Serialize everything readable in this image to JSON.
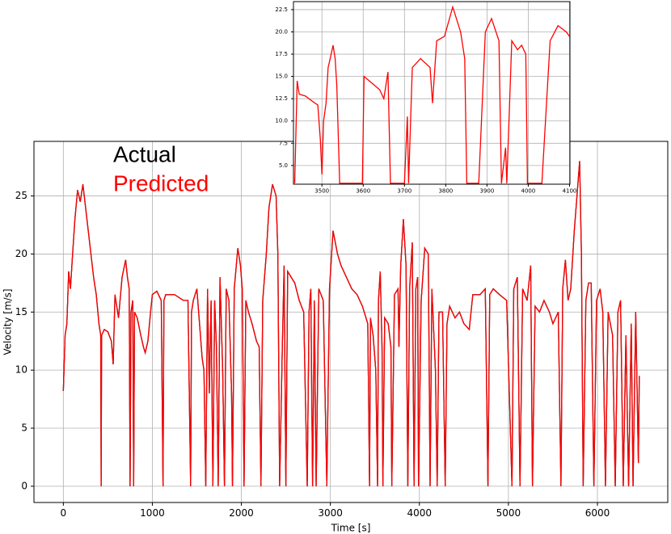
{
  "chart_data": [
    {
      "type": "line",
      "xlabel": "Time [s]",
      "ylabel": "Velocity [m/s]",
      "grid": true,
      "legend": "upper left",
      "xlim": [
        -330,
        6790
      ],
      "ylim": [
        -1.4,
        29.7
      ],
      "xticks": [
        0,
        1000,
        2000,
        3000,
        4000,
        5000,
        6000
      ],
      "yticks": [
        0,
        5,
        10,
        15,
        20,
        25
      ],
      "x": [
        0,
        20,
        40,
        60,
        80,
        100,
        130,
        160,
        190,
        220,
        250,
        280,
        310,
        340,
        370,
        400,
        420,
        425,
        430,
        460,
        500,
        540,
        560,
        580,
        620,
        660,
        700,
        720,
        740,
        750,
        760,
        780,
        790,
        800,
        830,
        870,
        900,
        920,
        950,
        980,
        1000,
        1050,
        1100,
        1120,
        1130,
        1150,
        1250,
        1350,
        1400,
        1430,
        1440,
        1460,
        1500,
        1530,
        1560,
        1580,
        1600,
        1620,
        1640,
        1660,
        1680,
        1700,
        1720,
        1740,
        1760,
        1790,
        1810,
        1830,
        1860,
        1890,
        1900,
        1920,
        1960,
        1990,
        2010,
        2030,
        2050,
        2080,
        2120,
        2170,
        2200,
        2220,
        2240,
        2280,
        2310,
        2350,
        2390,
        2410,
        2430,
        2460,
        2480,
        2500,
        2520,
        2600,
        2650,
        2700,
        2740,
        2760,
        2780,
        2800,
        2820,
        2840,
        2870,
        2920,
        2960,
        2990,
        3030,
        3080,
        3120,
        3180,
        3240,
        3300,
        3360,
        3420,
        3440,
        3450,
        3480,
        3510,
        3530,
        3540,
        3560,
        3580,
        3590,
        3610,
        3650,
        3680,
        3690,
        3720,
        3760,
        3770,
        3790,
        3820,
        3850,
        3870,
        3890,
        3920,
        3940,
        3960,
        3980,
        3990,
        4020,
        4060,
        4100,
        4120,
        4140,
        4180,
        4200,
        4220,
        4260,
        4290,
        4310,
        4340,
        4400,
        4450,
        4500,
        4560,
        4600,
        4680,
        4740,
        4770,
        4790,
        4830,
        4900,
        4980,
        5040,
        5060,
        5100,
        5130,
        5160,
        5210,
        5250,
        5270,
        5300,
        5350,
        5400,
        5460,
        5500,
        5560,
        5590,
        5610,
        5640,
        5670,
        5700,
        5740,
        5770,
        5800,
        5820,
        5840,
        5870,
        5900,
        5930,
        5960,
        5990,
        6030,
        6060,
        6090,
        6120,
        6170,
        6200,
        6230,
        6260,
        6290,
        6320,
        6350,
        6380,
        6400,
        6430,
        6460,
        6470
      ],
      "series": [
        {
          "name": "Actual",
          "color": "#000000",
          "values": [
            8.2,
            13,
            14,
            18.5,
            17,
            19.5,
            23,
            25.5,
            24.5,
            26,
            24,
            22,
            20,
            18,
            16.5,
            14,
            13,
            0,
            13,
            13.5,
            13.3,
            12.5,
            10.5,
            16.5,
            14.5,
            18,
            19.5,
            18,
            17,
            0,
            15,
            16,
            0,
            15,
            14.5,
            13,
            12,
            11.5,
            12.5,
            15,
            16.5,
            16.8,
            16,
            0,
            16,
            16.5,
            16.5,
            16,
            16,
            0,
            15,
            16,
            17,
            14,
            11,
            10,
            0,
            17,
            8,
            16,
            0,
            16,
            12,
            0,
            18,
            10,
            0,
            17,
            16,
            8,
            0,
            17,
            20.5,
            19,
            17,
            0,
            16,
            15,
            14,
            12.5,
            12,
            0,
            16,
            20,
            24,
            26,
            25,
            20,
            0,
            12,
            19,
            0,
            18.5,
            17.5,
            16,
            15,
            0,
            15,
            17,
            0,
            16,
            0,
            17,
            16,
            0,
            17,
            22,
            20,
            19,
            18,
            17,
            16.5,
            15.5,
            14,
            0,
            14.5,
            13,
            10,
            0,
            16,
            18.5,
            12,
            0,
            14.5,
            14,
            12,
            0,
            16.5,
            17,
            12,
            19,
            23,
            19,
            0,
            17,
            21,
            0,
            17,
            18,
            0,
            16,
            20.5,
            20,
            0,
            17,
            10,
            0,
            15,
            15,
            0,
            14,
            15.5,
            14.5,
            15,
            14,
            13.5,
            16.5,
            16.5,
            17,
            0,
            16.5,
            17,
            16.5,
            16,
            0,
            17,
            18,
            0,
            17,
            16,
            19,
            0,
            15.5,
            15,
            16,
            15,
            14,
            15,
            0,
            17,
            19.5,
            16,
            17,
            22,
            25,
            28,
            20,
            0,
            16,
            17.5,
            17.5,
            0,
            16,
            17,
            15,
            0,
            15,
            13,
            0,
            15,
            16,
            0,
            13,
            0,
            14,
            0,
            15,
            2,
            9.5
          ]
        },
        {
          "name": "Predicted",
          "color": "#ff0000",
          "values": [
            8.2,
            13,
            14,
            18.5,
            17,
            19.5,
            23,
            25.5,
            24.5,
            26,
            24,
            22,
            20,
            18,
            16.5,
            14,
            13,
            0,
            13,
            13.5,
            13.3,
            12.5,
            10.5,
            16.5,
            14.5,
            18,
            19.5,
            18,
            17,
            0,
            15,
            16,
            0,
            15,
            14.5,
            13,
            12,
            11.5,
            12.5,
            15,
            16.5,
            16.8,
            16,
            0,
            16,
            16.5,
            16.5,
            16,
            16,
            0,
            15,
            16,
            17,
            14,
            11,
            10,
            0,
            17,
            8,
            16,
            0,
            16,
            12,
            0,
            18,
            10,
            0,
            17,
            16,
            8,
            0,
            17,
            20.5,
            19,
            17,
            0,
            16,
            15,
            14,
            12.5,
            12,
            0,
            16,
            20,
            24,
            26,
            25,
            20,
            0,
            12,
            19,
            0,
            18.5,
            17.5,
            16,
            15,
            0,
            15,
            17,
            0,
            16,
            0,
            17,
            16,
            0,
            17,
            22,
            20,
            19,
            18,
            17,
            16.5,
            15.5,
            14,
            0,
            14.5,
            13,
            10,
            0,
            16,
            18.5,
            12,
            0,
            14.5,
            14,
            12,
            0,
            16.5,
            17,
            12,
            19,
            23,
            19,
            0,
            17,
            21,
            0,
            17,
            18,
            0,
            16,
            20.5,
            20,
            0,
            17,
            10,
            0,
            15,
            15,
            0,
            14,
            15.5,
            14.5,
            15,
            14,
            13.5,
            16.5,
            16.5,
            17,
            0,
            16.5,
            17,
            16.5,
            16,
            0,
            17,
            18,
            0,
            17,
            16,
            19,
            0,
            15.5,
            15,
            16,
            15,
            14,
            15,
            0,
            17,
            19.5,
            16,
            17,
            22,
            25,
            28,
            20,
            0,
            16,
            17.5,
            17.5,
            0,
            16,
            17,
            15,
            0,
            15,
            13,
            0,
            15,
            16,
            0,
            13,
            0,
            14,
            0,
            15,
            2,
            9.5
          ]
        }
      ]
    },
    {
      "type": "line",
      "grid": true,
      "xlim": [
        3431,
        4101
      ],
      "ylim": [
        2.9,
        23.4
      ],
      "xticks": [
        3500,
        3600,
        3700,
        3800,
        3900,
        4000,
        4100
      ],
      "yticks": [
        {
          "value": 5,
          "label": "5.0"
        },
        7.5,
        {
          "value": 10,
          "label": "10.0"
        },
        12.5,
        {
          "value": 15,
          "label": "15.0"
        },
        17.5,
        {
          "value": 20,
          "label": "20.0"
        },
        22.5
      ],
      "x": [
        3434,
        3440,
        3445,
        3460,
        3483,
        3490,
        3496,
        3500,
        3504,
        3510,
        3515,
        3520,
        3527,
        3532,
        3536,
        3543,
        3598,
        3602,
        3620,
        3640,
        3650,
        3660,
        3666,
        3700,
        3707,
        3710,
        3719,
        3739,
        3762,
        3768,
        3778,
        3797,
        3817,
        3836,
        3846,
        3851,
        3880,
        3896,
        3911,
        3929,
        3935,
        3945,
        3948,
        3960,
        3974,
        3984,
        3994,
        3998,
        4033,
        4053,
        4072,
        4092,
        4100
      ],
      "series": [
        {
          "name": "Predicted",
          "color": "#ff0000",
          "values": [
            3,
            14.5,
            13,
            12.8,
            12,
            11.8,
            8,
            4,
            10,
            12,
            16,
            17,
            18.5,
            17,
            14,
            3,
            3,
            15,
            14.3,
            13.5,
            12.5,
            15.5,
            3,
            3,
            10.5,
            3,
            16,
            17,
            16,
            12,
            19,
            19.5,
            22.8,
            20,
            17,
            3,
            3,
            20,
            21.5,
            19,
            3,
            7,
            3,
            19,
            18,
            18.5,
            17.5,
            3,
            3,
            19,
            20.7,
            20,
            19.5
          ]
        }
      ]
    }
  ]
}
